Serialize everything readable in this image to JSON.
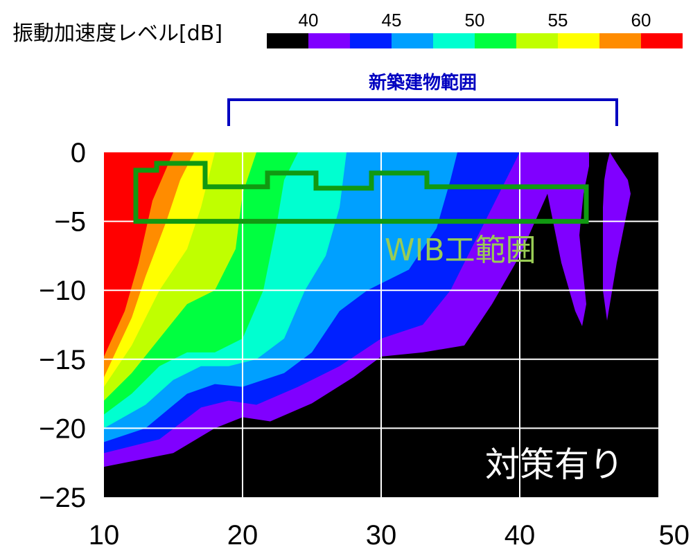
{
  "legend": {
    "title": "振動加速度レベル[dB]",
    "tick_labels": [
      "40",
      "45",
      "50",
      "55",
      "60"
    ],
    "colors": [
      "#000000",
      "#8000ff",
      "#0020ff",
      "#00a0ff",
      "#00ffd0",
      "#00ff40",
      "#c0ff00",
      "#ffff00",
      "#ff8c00",
      "#ff0000"
    ]
  },
  "bracket": {
    "label": "新築建物範囲",
    "color": "#0000c0",
    "x_range": [
      19,
      47
    ]
  },
  "wib": {
    "label": "WIB工範囲",
    "outline_color": "#119911",
    "label_color": "#99cc55"
  },
  "condition_label": "対策有り",
  "chart_data": {
    "type": "heatmap",
    "subtype": "filled-contour",
    "title": "",
    "xlabel": "",
    "ylabel": "",
    "xlim": [
      10,
      50
    ],
    "ylim": [
      -25,
      0
    ],
    "x_ticks": [
      10,
      20,
      30,
      40,
      50
    ],
    "y_ticks": [
      0,
      -5,
      -10,
      -15,
      -20,
      -25
    ],
    "x_tick_labels": [
      "10",
      "20",
      "30",
      "40",
      "50"
    ],
    "y_tick_labels": [
      "0",
      "−5",
      "−10",
      "−15",
      "−20",
      "−25"
    ],
    "grid": true,
    "grid_color": "#ffffff",
    "colorbar": {
      "unit": "dB",
      "levels": [
        40,
        42.5,
        45,
        47.5,
        50,
        52.5,
        55,
        57.5,
        60
      ]
    },
    "contour_lines": [
      {
        "level": 40,
        "points": [
          [
            10,
            -22.8
          ],
          [
            15,
            -21.8
          ],
          [
            18,
            -20
          ],
          [
            20,
            -19.2
          ],
          [
            22,
            -19.5
          ],
          [
            25,
            -18.2
          ],
          [
            28,
            -16.3
          ],
          [
            30,
            -14.8
          ],
          [
            33,
            -14.5
          ],
          [
            36,
            -14
          ],
          [
            38,
            -11
          ],
          [
            40,
            -7.5
          ],
          [
            42,
            -3
          ],
          [
            43,
            0
          ]
        ]
      },
      {
        "level": 42.5,
        "points": [
          [
            10,
            -21.8
          ],
          [
            14,
            -20.8
          ],
          [
            17,
            -18.5
          ],
          [
            19,
            -18
          ],
          [
            21,
            -18.3
          ],
          [
            24,
            -17
          ],
          [
            27,
            -15.5
          ],
          [
            30,
            -13.5
          ],
          [
            33,
            -12.5
          ],
          [
            35,
            -10
          ],
          [
            37,
            -6
          ],
          [
            39,
            -2
          ],
          [
            40,
            0
          ]
        ]
      },
      {
        "level": 45,
        "points": [
          [
            10,
            -21
          ],
          [
            13,
            -20
          ],
          [
            16,
            -17.5
          ],
          [
            18,
            -16.8
          ],
          [
            20,
            -17
          ],
          [
            23,
            -16
          ],
          [
            25,
            -14.5
          ],
          [
            27,
            -11.5
          ],
          [
            29,
            -10
          ],
          [
            32,
            -8.5
          ],
          [
            34,
            -5.5
          ],
          [
            35,
            -2
          ],
          [
            35.5,
            0
          ]
        ]
      },
      {
        "level": 47.5,
        "points": [
          [
            10,
            -20
          ],
          [
            13,
            -18.3
          ],
          [
            15,
            -16.5
          ],
          [
            17,
            -15.5
          ],
          [
            19,
            -15.5
          ],
          [
            21,
            -15
          ],
          [
            23,
            -13.5
          ],
          [
            24.5,
            -10
          ],
          [
            26,
            -7.5
          ],
          [
            27,
            -4
          ],
          [
            27.5,
            0
          ]
        ]
      },
      {
        "level": 50,
        "points": [
          [
            10,
            -19
          ],
          [
            12,
            -17.5
          ],
          [
            14,
            -15.5
          ],
          [
            16,
            -14.5
          ],
          [
            18,
            -14.5
          ],
          [
            20,
            -13.5
          ],
          [
            21.5,
            -10
          ],
          [
            22.5,
            -5
          ],
          [
            23,
            -2
          ],
          [
            24,
            0
          ]
        ]
      },
      {
        "level": 52.5,
        "points": [
          [
            10,
            -18
          ],
          [
            12,
            -16
          ],
          [
            14,
            -13.5
          ],
          [
            16,
            -11
          ],
          [
            18,
            -10
          ],
          [
            19.5,
            -7
          ],
          [
            20,
            -3
          ],
          [
            21,
            0
          ]
        ]
      },
      {
        "level": 55,
        "points": [
          [
            10,
            -17
          ],
          [
            12,
            -14
          ],
          [
            14,
            -10
          ],
          [
            16,
            -7
          ],
          [
            17,
            -4
          ],
          [
            18,
            0
          ]
        ]
      },
      {
        "level": 57.5,
        "points": [
          [
            10,
            -16.3
          ],
          [
            12,
            -12
          ],
          [
            13,
            -9
          ],
          [
            14.5,
            -5
          ],
          [
            15.5,
            -2
          ],
          [
            16.5,
            0
          ]
        ]
      },
      {
        "level": 60,
        "points": [
          [
            10,
            -14.8
          ],
          [
            11.5,
            -11.5
          ],
          [
            12.5,
            -8
          ],
          [
            13.5,
            -3.5
          ],
          [
            15,
            0
          ]
        ]
      }
    ],
    "islands": [
      {
        "level": 40,
        "points": [
          [
            41,
            0
          ],
          [
            42,
            -3
          ],
          [
            43,
            -8
          ],
          [
            44,
            -11.5
          ],
          [
            44.5,
            -12.6
          ],
          [
            44.8,
            -11
          ],
          [
            44.3,
            -6
          ],
          [
            44.6,
            -3
          ],
          [
            45,
            -1
          ],
          [
            45,
            0
          ]
        ]
      },
      {
        "level": 40,
        "points": [
          [
            46.5,
            0
          ],
          [
            47,
            -0.8
          ],
          [
            47.8,
            -2
          ],
          [
            48,
            -3
          ],
          [
            47.6,
            -5
          ],
          [
            47,
            -8
          ],
          [
            46.5,
            -11
          ],
          [
            46.3,
            -12.2
          ],
          [
            46,
            -10
          ],
          [
            46,
            -7
          ],
          [
            46,
            -4
          ],
          [
            46.1,
            -2
          ],
          [
            46.3,
            -0.8
          ]
        ]
      }
    ],
    "wib_outline": [
      [
        12.3,
        -1.3
      ],
      [
        13.8,
        -1.3
      ],
      [
        13.8,
        -0.8
      ],
      [
        17.3,
        -0.8
      ],
      [
        17.3,
        -2.5
      ],
      [
        21.8,
        -2.5
      ],
      [
        21.8,
        -1.5
      ],
      [
        25.3,
        -1.5
      ],
      [
        25.3,
        -2.6
      ],
      [
        29.3,
        -2.6
      ],
      [
        29.3,
        -1.5
      ],
      [
        33.3,
        -1.5
      ],
      [
        33.3,
        -2.5
      ],
      [
        44.8,
        -2.5
      ],
      [
        44.8,
        -5
      ],
      [
        12.3,
        -5
      ]
    ]
  }
}
